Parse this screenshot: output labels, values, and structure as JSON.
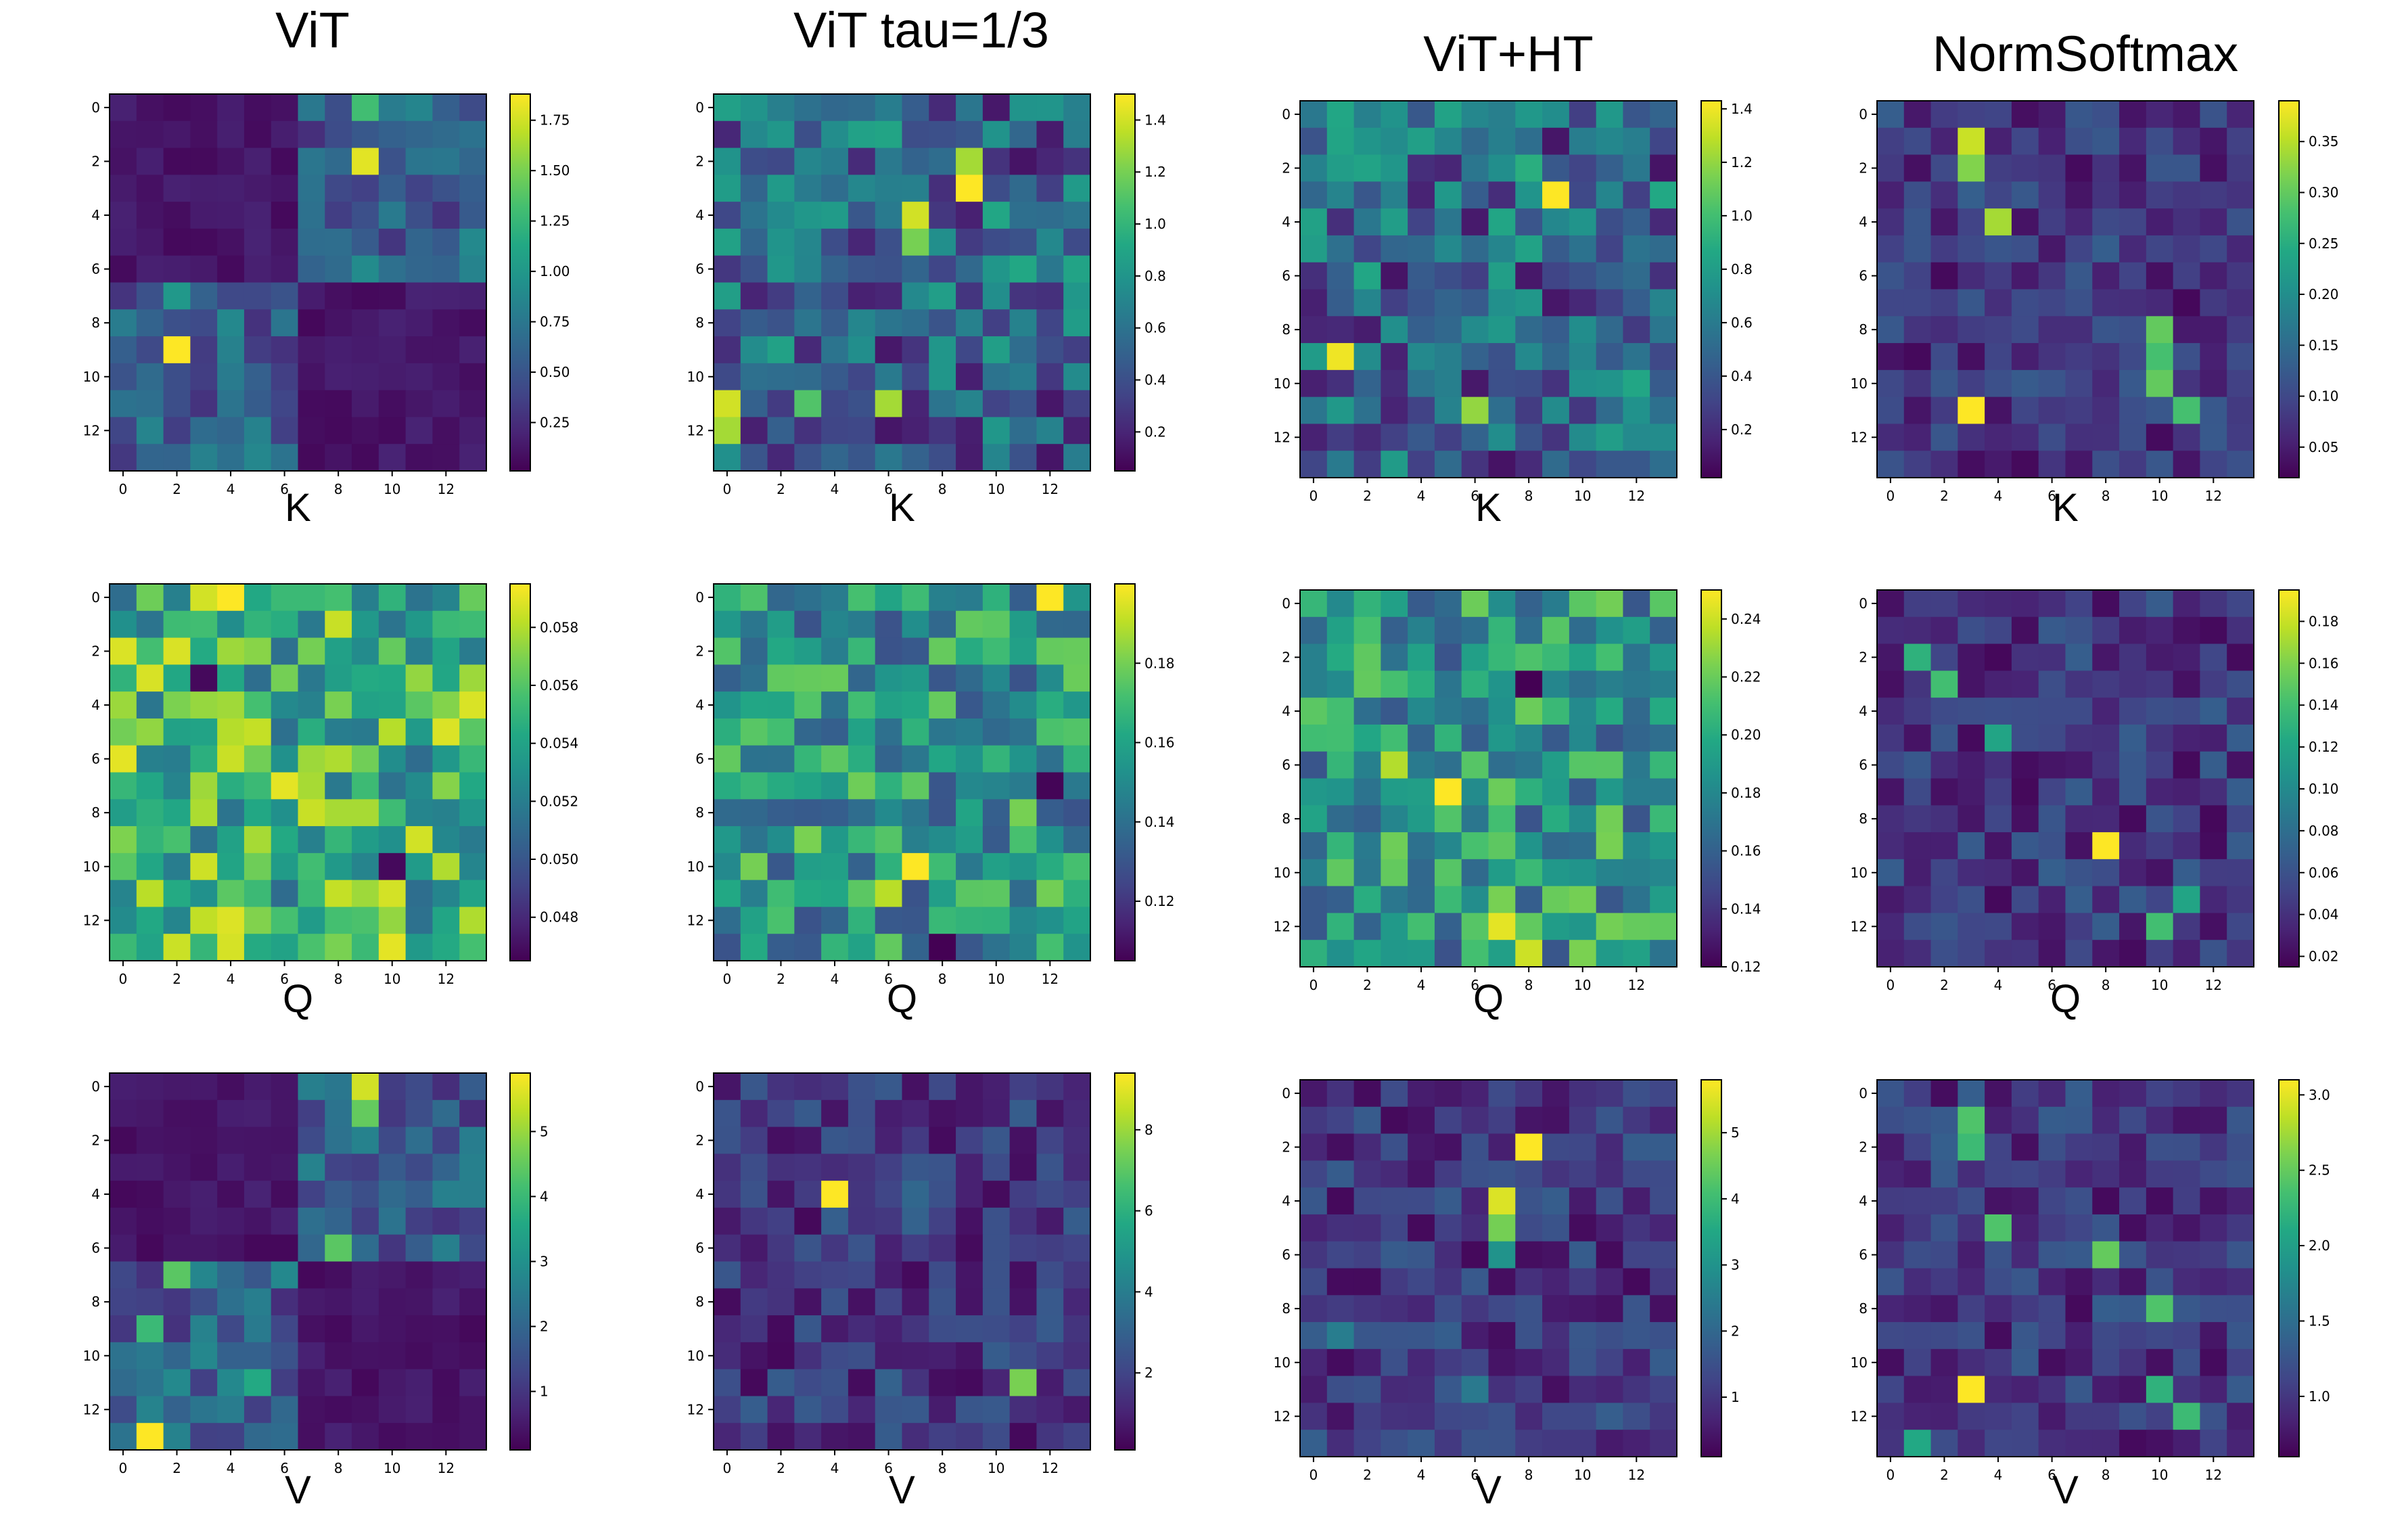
{
  "figure": {
    "columns": [
      "ViT",
      "ViT tau=1/3",
      "ViT+HT",
      "NormSoftmax"
    ],
    "rows": [
      "K",
      "Q",
      "V"
    ]
  },
  "chart_data": [
    {
      "type": "heatmap",
      "column": "ViT",
      "xlabel": "K",
      "grid_size": 14,
      "xticks": [
        0,
        2,
        4,
        6,
        8,
        10,
        12
      ],
      "yticks": [
        0,
        2,
        4,
        6,
        8,
        10,
        12
      ],
      "colorbar": {
        "vmin": 0.01,
        "vmax": 1.88,
        "ticks": [
          0.25,
          0.5,
          0.75,
          1.0,
          1.25,
          1.5,
          1.75
        ],
        "tick_labels": [
          "0.25",
          "0.50",
          "0.75",
          "1.00",
          "1.25",
          "1.50",
          "1.75"
        ]
      },
      "pattern": "block",
      "seed": 11,
      "hot": [
        [
          0,
          9,
          1.3
        ],
        [
          2,
          9,
          1.8
        ],
        [
          6,
          9,
          0.9
        ],
        [
          7,
          2,
          1.0
        ],
        [
          9,
          2,
          1.88
        ],
        [
          8,
          1,
          0.6
        ]
      ]
    },
    {
      "type": "heatmap",
      "column": "ViT tau=1/3",
      "xlabel": "K",
      "grid_size": 14,
      "xticks": [
        0,
        2,
        4,
        6,
        8,
        10,
        12
      ],
      "yticks": [
        0,
        2,
        4,
        6,
        8,
        10,
        12
      ],
      "colorbar": {
        "vmin": 0.05,
        "vmax": 1.5,
        "ticks": [
          0.2,
          0.4,
          0.6,
          0.8,
          1.0,
          1.2,
          1.4
        ],
        "tick_labels": [
          "0.2",
          "0.4",
          "0.6",
          "0.8",
          "1.0",
          "1.2",
          "1.4"
        ]
      },
      "pattern": "random",
      "seed": 23,
      "hot": [
        [
          3,
          9,
          1.5
        ],
        [
          4,
          7,
          1.4
        ],
        [
          5,
          7,
          1.2
        ],
        [
          2,
          9,
          1.3
        ],
        [
          11,
          0,
          1.4
        ],
        [
          12,
          0,
          1.3
        ],
        [
          11,
          6,
          1.3
        ],
        [
          11,
          3,
          1.1
        ]
      ]
    },
    {
      "type": "heatmap",
      "column": "ViT+HT",
      "xlabel": "K",
      "grid_size": 14,
      "xticks": [
        0,
        2,
        4,
        6,
        8,
        10,
        12
      ],
      "yticks": [
        0,
        2,
        4,
        6,
        8,
        10,
        12
      ],
      "colorbar": {
        "vmin": 0.02,
        "vmax": 1.43,
        "ticks": [
          0.2,
          0.4,
          0.6,
          0.8,
          1.0,
          1.2,
          1.4
        ],
        "tick_labels": [
          "0.2",
          "0.4",
          "0.6",
          "0.8",
          "1.0",
          "1.2",
          "1.4"
        ]
      },
      "pattern": "random",
      "seed": 37,
      "hot": [
        [
          3,
          9,
          1.43
        ],
        [
          9,
          1,
          1.4
        ],
        [
          11,
          6,
          1.2
        ],
        [
          2,
          8,
          0.9
        ],
        [
          4,
          7,
          0.85
        ]
      ]
    },
    {
      "type": "heatmap",
      "column": "NormSoftmax",
      "xlabel": "K",
      "grid_size": 14,
      "xticks": [
        0,
        2,
        4,
        6,
        8,
        10,
        12
      ],
      "yticks": [
        0,
        2,
        4,
        6,
        8,
        10,
        12
      ],
      "colorbar": {
        "vmin": 0.02,
        "vmax": 0.39,
        "ticks": [
          0.05,
          0.1,
          0.15,
          0.2,
          0.25,
          0.3,
          0.35
        ],
        "tick_labels": [
          "0.05",
          "0.10",
          "0.15",
          "0.20",
          "0.25",
          "0.30",
          "0.35"
        ]
      },
      "pattern": "sparse",
      "seed": 41,
      "hot": [
        [
          1,
          3,
          0.36
        ],
        [
          2,
          3,
          0.32
        ],
        [
          4,
          4,
          0.34
        ],
        [
          11,
          3,
          0.39
        ],
        [
          8,
          10,
          0.3
        ],
        [
          9,
          10,
          0.28
        ],
        [
          10,
          10,
          0.3
        ],
        [
          11,
          11,
          0.28
        ]
      ]
    },
    {
      "type": "heatmap",
      "column": "ViT",
      "xlabel": "Q",
      "grid_size": 14,
      "xticks": [
        0,
        2,
        4,
        6,
        8,
        10,
        12
      ],
      "yticks": [
        0,
        2,
        4,
        6,
        8,
        10,
        12
      ],
      "colorbar": {
        "vmin": 0.0465,
        "vmax": 0.0595,
        "ticks": [
          0.048,
          0.05,
          0.052,
          0.054,
          0.056,
          0.058
        ],
        "tick_labels": [
          "0.048",
          "0.050",
          "0.052",
          "0.054",
          "0.056",
          "0.058"
        ]
      },
      "pattern": "dense-high",
      "seed": 53,
      "hot": [
        [
          0,
          4,
          0.0595
        ],
        [
          6,
          0,
          0.059
        ],
        [
          7,
          6,
          0.059
        ],
        [
          13,
          10,
          0.059
        ],
        [
          3,
          3,
          0.0468
        ],
        [
          10,
          10,
          0.0468
        ]
      ]
    },
    {
      "type": "heatmap",
      "column": "ViT tau=1/3",
      "xlabel": "Q",
      "grid_size": 14,
      "xticks": [
        0,
        2,
        4,
        6,
        8,
        10,
        12
      ],
      "yticks": [
        0,
        2,
        4,
        6,
        8,
        10,
        12
      ],
      "colorbar": {
        "vmin": 0.105,
        "vmax": 0.2,
        "ticks": [
          0.12,
          0.14,
          0.16,
          0.18
        ],
        "tick_labels": [
          "0.12",
          "0.14",
          "0.16",
          "0.18"
        ]
      },
      "pattern": "dense-mid",
      "seed": 67,
      "hot": [
        [
          0,
          12,
          0.2
        ],
        [
          10,
          7,
          0.2
        ],
        [
          11,
          6,
          0.19
        ],
        [
          13,
          8,
          0.105
        ],
        [
          7,
          12,
          0.106
        ]
      ]
    },
    {
      "type": "heatmap",
      "column": "ViT+HT",
      "xlabel": "Q",
      "grid_size": 14,
      "xticks": [
        0,
        2,
        4,
        6,
        8,
        10,
        12
      ],
      "yticks": [
        0,
        2,
        4,
        6,
        8,
        10,
        12
      ],
      "colorbar": {
        "vmin": 0.12,
        "vmax": 0.25,
        "ticks": [
          0.12,
          0.14,
          0.16,
          0.18,
          0.2,
          0.22,
          0.24
        ],
        "tick_labels": [
          "0.12",
          "0.14",
          "0.16",
          "0.18",
          "0.20",
          "0.22",
          "0.24"
        ]
      },
      "pattern": "dense-mid",
      "seed": 79,
      "hot": [
        [
          7,
          5,
          0.25
        ],
        [
          12,
          7,
          0.245
        ],
        [
          13,
          8,
          0.24
        ],
        [
          6,
          3,
          0.235
        ],
        [
          3,
          8,
          0.12
        ]
      ]
    },
    {
      "type": "heatmap",
      "column": "NormSoftmax",
      "xlabel": "Q",
      "grid_size": 14,
      "xticks": [
        0,
        2,
        4,
        6,
        8,
        10,
        12
      ],
      "yticks": [
        0,
        2,
        4,
        6,
        8,
        10,
        12
      ],
      "colorbar": {
        "vmin": 0.015,
        "vmax": 0.195,
        "ticks": [
          0.02,
          0.04,
          0.06,
          0.08,
          0.1,
          0.12,
          0.14,
          0.16,
          0.18
        ],
        "tick_labels": [
          "0.02",
          "0.04",
          "0.06",
          "0.08",
          "0.10",
          "0.12",
          "0.14",
          "0.16",
          "0.18"
        ]
      },
      "pattern": "sparse",
      "seed": 83,
      "hot": [
        [
          9,
          8,
          0.195
        ],
        [
          2,
          1,
          0.13
        ],
        [
          3,
          2,
          0.14
        ],
        [
          5,
          4,
          0.12
        ],
        [
          12,
          10,
          0.14
        ],
        [
          11,
          11,
          0.12
        ]
      ]
    },
    {
      "type": "heatmap",
      "column": "ViT",
      "xlabel": "V",
      "grid_size": 14,
      "xticks": [
        0,
        2,
        4,
        6,
        8,
        10,
        12
      ],
      "yticks": [
        0,
        2,
        4,
        6,
        8,
        10,
        12
      ],
      "colorbar": {
        "vmin": 0.1,
        "vmax": 5.9,
        "ticks": [
          1,
          2,
          3,
          4,
          5
        ],
        "tick_labels": [
          "1",
          "2",
          "3",
          "4",
          "5"
        ]
      },
      "pattern": "block",
      "seed": 97,
      "hot": [
        [
          0,
          9,
          5.5
        ],
        [
          1,
          9,
          4.5
        ],
        [
          6,
          8,
          4.4
        ],
        [
          13,
          1,
          5.9
        ],
        [
          7,
          2,
          4.4
        ],
        [
          9,
          1,
          4.0
        ],
        [
          11,
          5,
          3.6
        ]
      ]
    },
    {
      "type": "heatmap",
      "column": "ViT tau=1/3",
      "xlabel": "V",
      "grid_size": 14,
      "xticks": [
        0,
        2,
        4,
        6,
        8,
        10,
        12
      ],
      "yticks": [
        0,
        2,
        4,
        6,
        8,
        10,
        12
      ],
      "colorbar": {
        "vmin": 0.1,
        "vmax": 9.4,
        "ticks": [
          2,
          4,
          6,
          8
        ],
        "tick_labels": [
          "2",
          "4",
          "6",
          "8"
        ]
      },
      "pattern": "sparse",
      "seed": 101,
      "hot": [
        [
          4,
          4,
          9.4
        ],
        [
          11,
          11,
          7.5
        ],
        [
          4,
          7,
          3.2
        ],
        [
          5,
          7,
          3.0
        ],
        [
          11,
          6,
          3.0
        ]
      ]
    },
    {
      "type": "heatmap",
      "column": "ViT+HT",
      "xlabel": "V",
      "grid_size": 14,
      "xticks": [
        0,
        2,
        4,
        6,
        8,
        10,
        12
      ],
      "yticks": [
        0,
        2,
        4,
        6,
        8,
        10,
        12
      ],
      "colorbar": {
        "vmin": 0.1,
        "vmax": 5.8,
        "ticks": [
          1,
          2,
          3,
          4,
          5
        ],
        "tick_labels": [
          "1",
          "2",
          "3",
          "4",
          "5"
        ]
      },
      "pattern": "sparse",
      "seed": 113,
      "hot": [
        [
          2,
          8,
          5.8
        ],
        [
          4,
          7,
          5.5
        ],
        [
          5,
          7,
          4.6
        ],
        [
          6,
          7,
          3.0
        ],
        [
          9,
          1,
          2.5
        ],
        [
          11,
          6,
          2.4
        ]
      ]
    },
    {
      "type": "heatmap",
      "column": "NormSoftmax",
      "xlabel": "V",
      "grid_size": 14,
      "xticks": [
        0,
        2,
        4,
        6,
        8,
        10,
        12
      ],
      "yticks": [
        0,
        2,
        4,
        6,
        8,
        10,
        12
      ],
      "colorbar": {
        "vmin": 0.6,
        "vmax": 3.1,
        "ticks": [
          1.0,
          1.5,
          2.0,
          2.5,
          3.0
        ],
        "tick_labels": [
          "1.0",
          "1.5",
          "2.0",
          "2.5",
          "3.0"
        ]
      },
      "pattern": "sparse",
      "seed": 127,
      "hot": [
        [
          11,
          3,
          3.1
        ],
        [
          1,
          3,
          2.4
        ],
        [
          2,
          3,
          2.3
        ],
        [
          5,
          4,
          2.4
        ],
        [
          6,
          8,
          2.5
        ],
        [
          8,
          10,
          2.4
        ],
        [
          11,
          10,
          2.2
        ],
        [
          12,
          11,
          2.3
        ],
        [
          13,
          1,
          2.1
        ]
      ]
    }
  ]
}
